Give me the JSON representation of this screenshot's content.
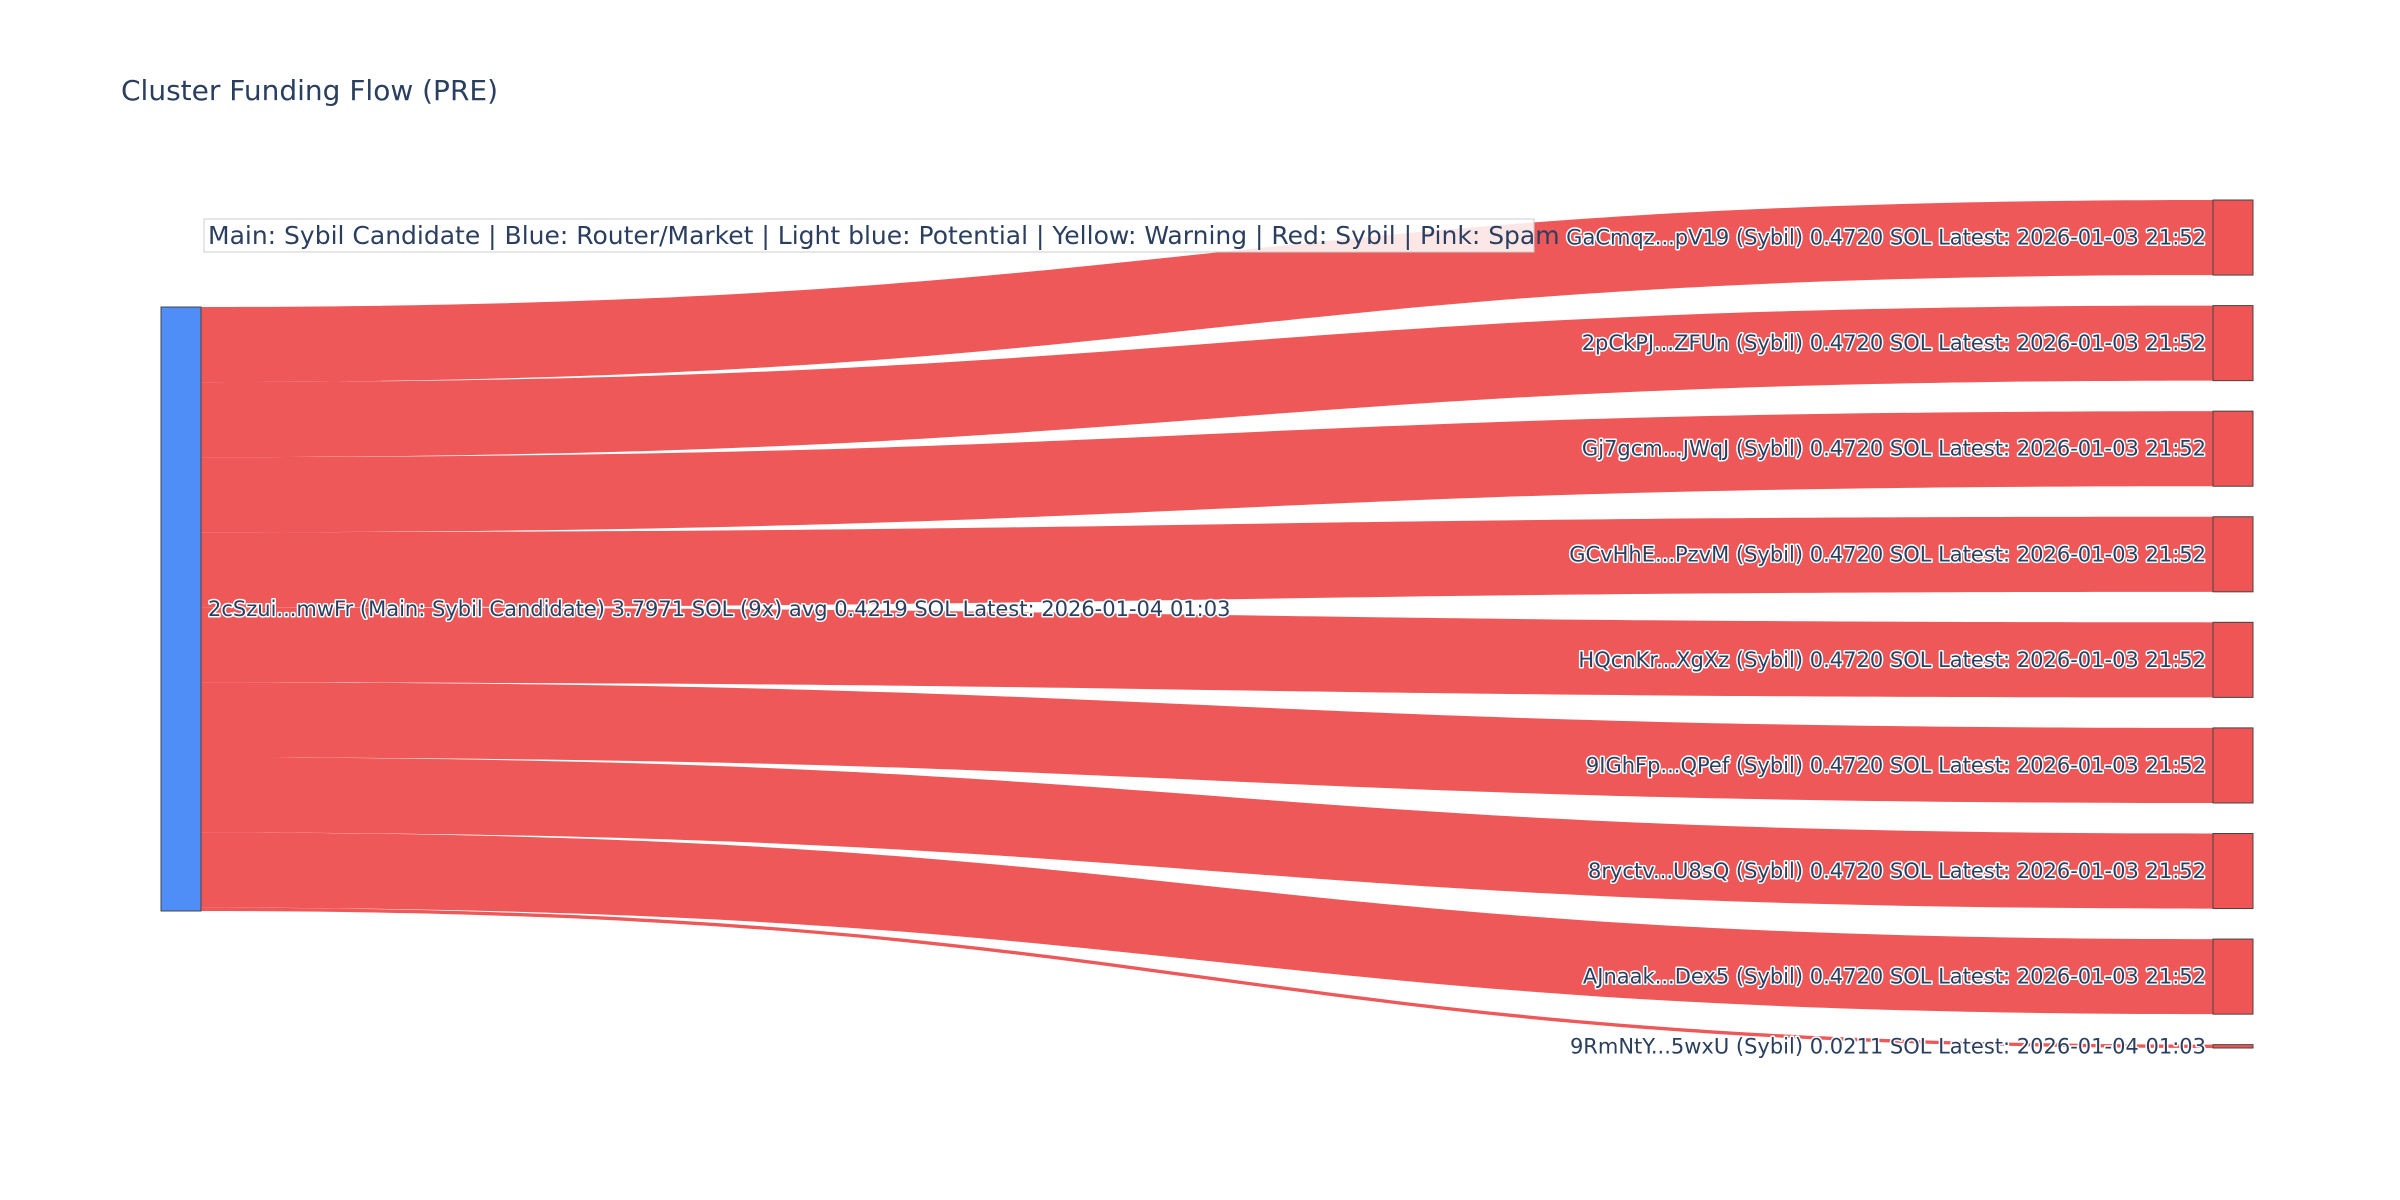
{
  "chart_data": {
    "type": "sankey",
    "title": "Cluster Funding Flow (PRE)",
    "legend_text": "Main: Sybil Candidate  |  Blue: Router/Market | Light blue: Potential | Yellow: Warning | Red: Sybil | Pink: Spam",
    "colors": {
      "source_node": "#4f8ef7",
      "target_node": "#ef5555",
      "link": "#ef5555",
      "node_border": "#444444",
      "legend_bg": "#ffffff",
      "legend_border": "#cccccc"
    },
    "source": {
      "label": "2cSzui...mwFr (Main: Sybil Candidate) 3.7971 SOL (9x) avg 0.4219 SOL Latest: 2026-01-04 01:03",
      "value": 3.7971
    },
    "targets": [
      {
        "label": "GaCmqz...pV19 (Sybil) 0.4720 SOL Latest: 2026-01-03 21:52",
        "value": 0.472
      },
      {
        "label": "2pCkPJ...ZFUn (Sybil) 0.4720 SOL Latest: 2026-01-03 21:52",
        "value": 0.472
      },
      {
        "label": "Gj7gcm...JWqJ (Sybil) 0.4720 SOL Latest: 2026-01-03 21:52",
        "value": 0.472
      },
      {
        "label": "GCvHhE...PzvM (Sybil) 0.4720 SOL Latest: 2026-01-03 21:52",
        "value": 0.472
      },
      {
        "label": "HQcnKr...XgXz (Sybil) 0.4720 SOL Latest: 2026-01-03 21:52",
        "value": 0.472
      },
      {
        "label": "9IGhFp...QPef (Sybil) 0.4720 SOL Latest: 2026-01-03 21:52",
        "value": 0.472
      },
      {
        "label": "8ryctv...U8sQ (Sybil) 0.4720 SOL Latest: 2026-01-03 21:52",
        "value": 0.472
      },
      {
        "label": "AJnaak...Dex5 (Sybil) 0.4720 SOL Latest: 2026-01-03 21:52",
        "value": 0.472
      },
      {
        "label": "9RmNtY...5wxU (Sybil) 0.0211 SOL Latest: 2026-01-04 01:03",
        "value": 0.0211
      }
    ]
  }
}
